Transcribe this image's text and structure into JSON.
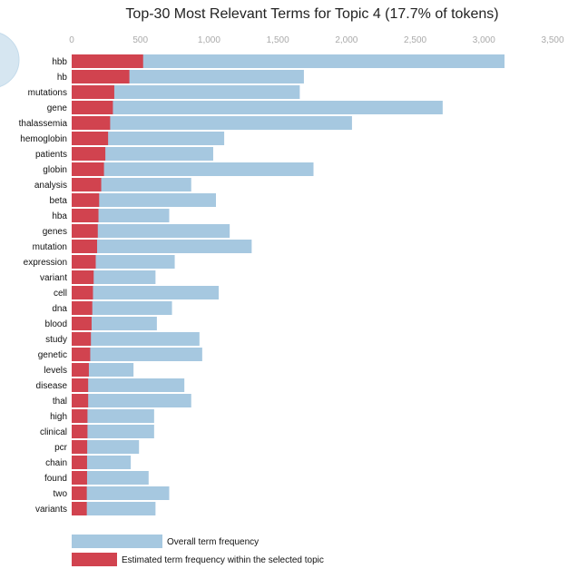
{
  "chart_data": {
    "type": "bar",
    "orientation": "horizontal",
    "title": "Top-30 Most Relevant Terms for Topic 4 (17.7% of tokens)",
    "xlim": [
      0,
      3500
    ],
    "xticks": [
      "0",
      "500",
      "1,000",
      "1,500",
      "2,000",
      "2,500",
      "3,000",
      "3,500"
    ],
    "xtick_values": [
      0,
      500,
      1000,
      1500,
      2000,
      2500,
      3000,
      3500
    ],
    "categories": [
      "hbb",
      "hb",
      "mutations",
      "gene",
      "thalassemia",
      "hemoglobin",
      "patients",
      "globin",
      "analysis",
      "beta",
      "hba",
      "genes",
      "mutation",
      "expression",
      "variant",
      "cell",
      "dna",
      "blood",
      "study",
      "genetic",
      "levels",
      "disease",
      "thal",
      "high",
      "clinical",
      "pcr",
      "chain",
      "found",
      "two",
      "variants"
    ],
    "series": [
      {
        "name": "Overall term frequency",
        "color": "#a6c8e0",
        "values": [
          3150,
          1690,
          1660,
          2700,
          2040,
          1110,
          1030,
          1760,
          870,
          1050,
          710,
          1150,
          1310,
          750,
          610,
          1070,
          730,
          620,
          930,
          950,
          450,
          820,
          870,
          600,
          600,
          490,
          430,
          560,
          710,
          610
        ]
      },
      {
        "name": "Estimated term frequency within the selected topic",
        "color": "#d1434f",
        "values": [
          520,
          420,
          310,
          300,
          280,
          265,
          245,
          235,
          215,
          200,
          195,
          190,
          185,
          175,
          160,
          155,
          150,
          145,
          140,
          135,
          125,
          120,
          120,
          115,
          115,
          113,
          112,
          112,
          110,
          110
        ]
      }
    ],
    "legend_position": "bottom"
  }
}
